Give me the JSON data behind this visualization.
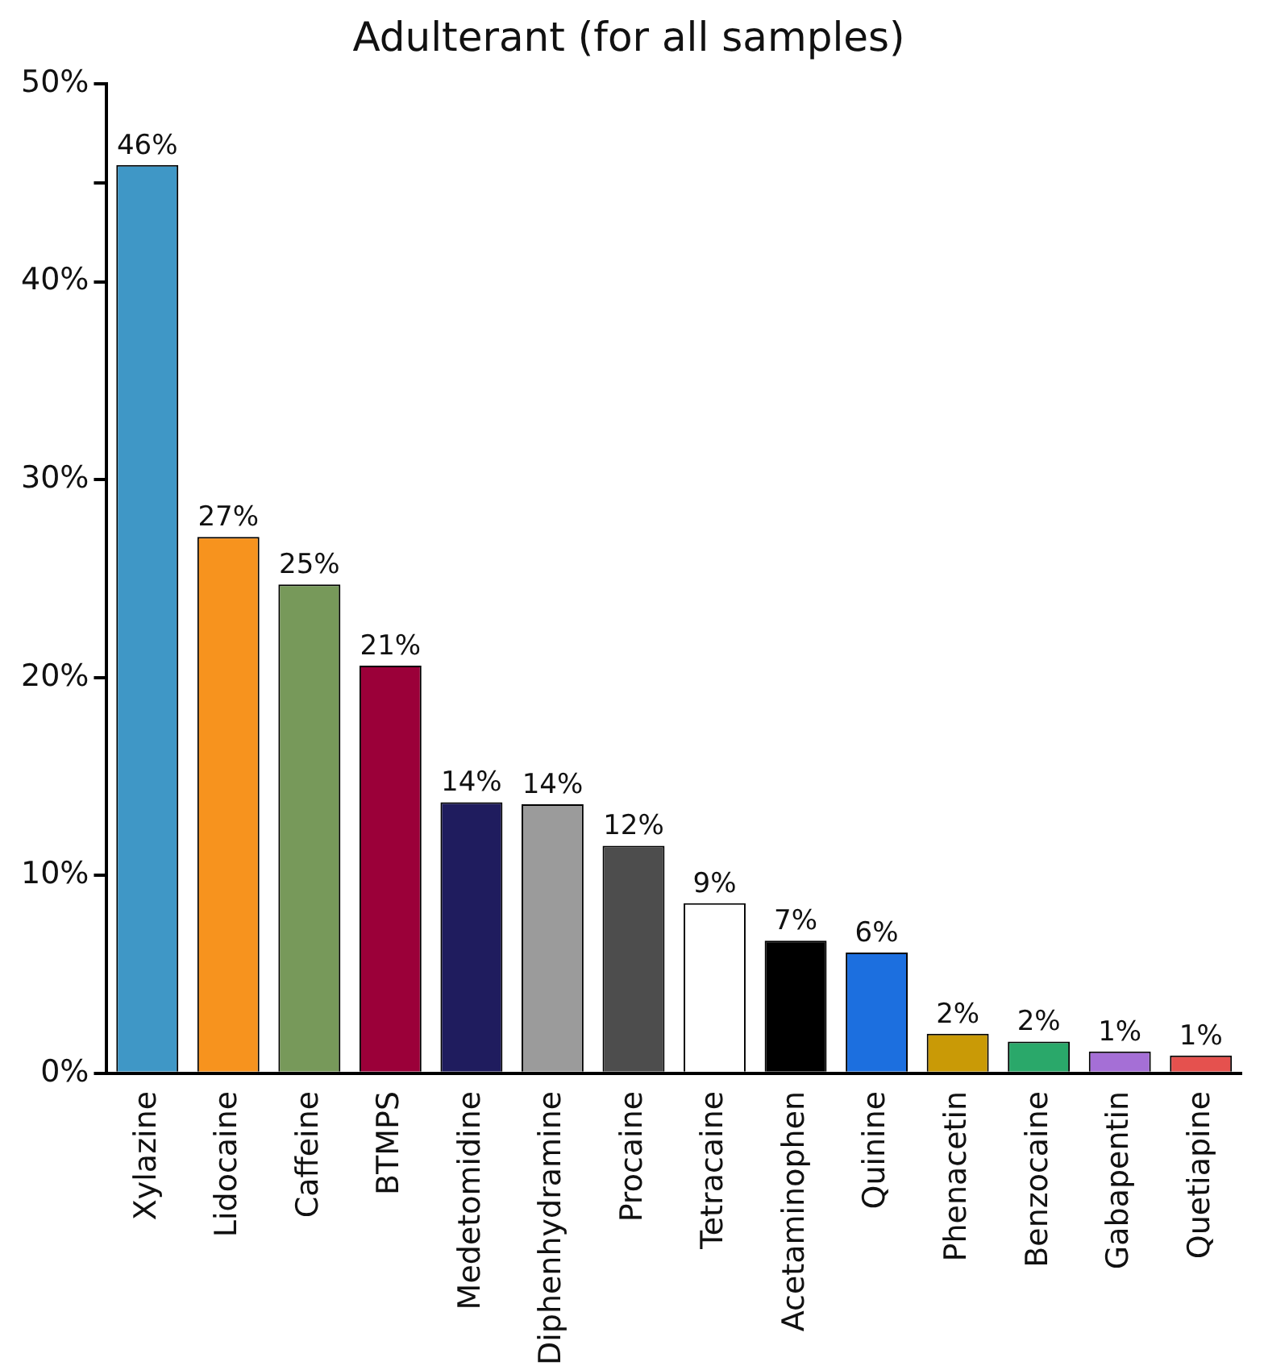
{
  "chart_data": {
    "type": "bar",
    "title": "Adulterant (for all samples)",
    "categories": [
      "Xylazine",
      "Lidocaine",
      "Caffeine",
      "BTMPS",
      "Medetomidine",
      "Diphenhydramine",
      "Procaine",
      "Tetracaine",
      "Acetaminophen",
      "Quinine",
      "Phenacetin",
      "Benzocaine",
      "Gabapentin",
      "Quetiapine"
    ],
    "values": [
      45.9,
      27.1,
      24.7,
      20.6,
      13.7,
      13.6,
      11.5,
      8.6,
      6.7,
      6.1,
      2.0,
      1.6,
      1.1,
      0.9
    ],
    "value_labels": [
      "46%",
      "27%",
      "25%",
      "21%",
      "14%",
      "14%",
      "12%",
      "9%",
      "7%",
      "6%",
      "2%",
      "2%",
      "1%",
      "1%"
    ],
    "colors": [
      "#3f97c6",
      "#f7931e",
      "#77995a",
      "#9b0039",
      "#1f1c5e",
      "#9b9b9b",
      "#4d4d4d",
      "#ffffff",
      "#000000",
      "#1c6fdf",
      "#c99a06",
      "#2aa86a",
      "#a56fd6",
      "#e5514e"
    ],
    "ylim": [
      0,
      50
    ],
    "yticks": [
      {
        "value": 0,
        "label": "0%"
      },
      {
        "value": 10,
        "label": "10%"
      },
      {
        "value": 20,
        "label": "20%"
      },
      {
        "value": 30,
        "label": "30%"
      },
      {
        "value": 40,
        "label": "40%"
      },
      {
        "value": 45,
        "label": null
      },
      {
        "value": 50,
        "label": "50%"
      }
    ],
    "grid": false,
    "legend": false
  }
}
